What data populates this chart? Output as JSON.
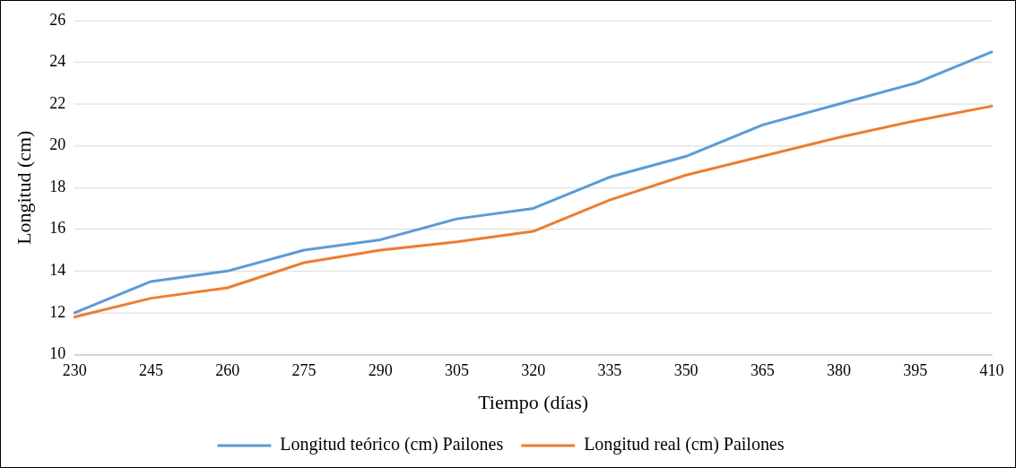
{
  "chart_data": {
    "type": "line",
    "xlabel": "Tiempo (días)",
    "ylabel": "Longitud (cm)",
    "categories": [
      "230",
      "245",
      "260",
      "275",
      "290",
      "305",
      "320",
      "335",
      "350",
      "365",
      "380",
      "395",
      "410"
    ],
    "series": [
      {
        "name": "Longitud teórico (cm) Pailones",
        "color": "#5b9bd5",
        "values": [
          12,
          13.5,
          14,
          15,
          15.5,
          16.5,
          17,
          18.5,
          19.5,
          21,
          22,
          23,
          24.5
        ]
      },
      {
        "name": "Longitud real (cm) Pailones",
        "color": "#ed7d31",
        "values": [
          11.8,
          12.7,
          13.2,
          14.4,
          15,
          15.4,
          15.9,
          17.4,
          18.6,
          19.5,
          20.4,
          21.2,
          21.9
        ]
      }
    ],
    "ylim": [
      10,
      26
    ],
    "yticks": [
      10,
      12,
      14,
      16,
      18,
      20,
      22,
      24,
      26
    ],
    "grid": "y",
    "legend": "bottom",
    "marker": "none",
    "line_style": "solid"
  }
}
